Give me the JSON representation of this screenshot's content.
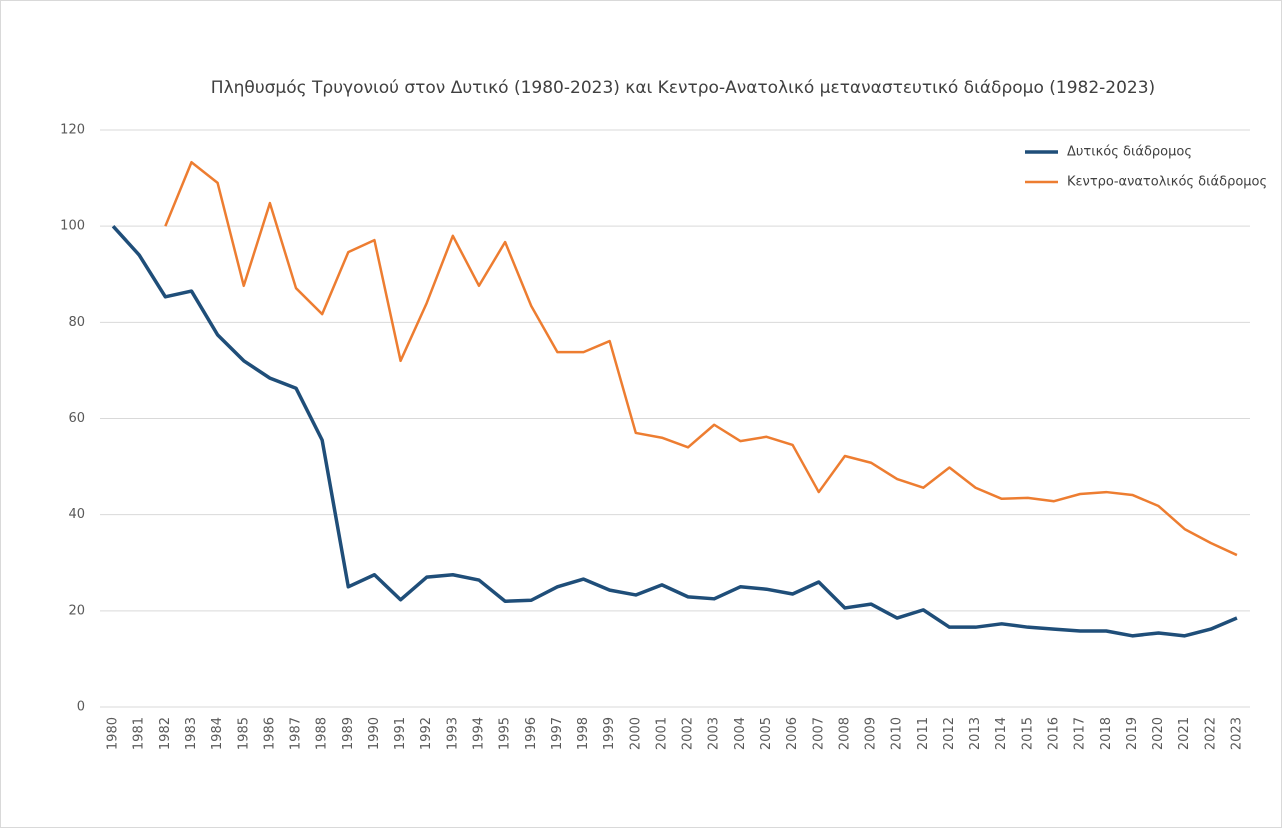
{
  "chart_data": {
    "type": "line",
    "title": "Πληθυσμός Τρυγονιού στον Δυτικό (1980-2023) και Κεντρο-Ανατολικό μεταναστευτικό διάδρομο (1982-2023)",
    "x": [
      1980,
      1981,
      1982,
      1983,
      1984,
      1985,
      1986,
      1987,
      1988,
      1989,
      1990,
      1991,
      1992,
      1993,
      1994,
      1995,
      1996,
      1997,
      1998,
      1999,
      2000,
      2001,
      2002,
      2003,
      2004,
      2005,
      2006,
      2007,
      2008,
      2009,
      2010,
      2011,
      2012,
      2013,
      2014,
      2015,
      2016,
      2017,
      2018,
      2019,
      2020,
      2021,
      2022,
      2023
    ],
    "xlim": [
      1979.5,
      2023.5
    ],
    "ylim": [
      0,
      120
    ],
    "yticks": [
      0,
      20,
      40,
      60,
      80,
      100,
      120
    ],
    "grid": true,
    "series": [
      {
        "name": "Δυτικός διάδρομος",
        "color": "#1f4e79",
        "values": [
          100,
          94,
          85.3,
          86.5,
          77.4,
          72,
          68.4,
          66.3,
          55.5,
          25,
          27.5,
          22.3,
          27,
          27.5,
          26.4,
          22,
          22.2,
          25,
          26.6,
          24.3,
          23.3,
          25.4,
          22.9,
          22.5,
          25,
          24.5,
          23.5,
          26,
          20.6,
          21.4,
          18.5,
          20.2,
          16.6,
          16.6,
          17.3,
          16.6,
          16.2,
          15.8,
          15.8,
          14.8,
          15.4,
          14.8,
          16.2,
          18.5
        ]
      },
      {
        "name": "Κεντρο-ανατολικός διάδρομος",
        "color": "#ed7d31",
        "values": [
          null,
          null,
          100,
          113.3,
          109,
          87.6,
          104.8,
          87.1,
          81.7,
          94.6,
          97.1,
          72,
          84,
          98,
          87.6,
          96.7,
          83.4,
          73.8,
          73.8,
          76.1,
          57,
          56,
          54,
          58.7,
          55.3,
          56.2,
          54.5,
          44.7,
          52.2,
          50.8,
          47.4,
          45.6,
          49.8,
          45.6,
          43.3,
          43.5,
          42.8,
          44.3,
          44.7,
          44.1,
          41.8,
          37,
          34.1,
          31.6
        ]
      }
    ]
  }
}
